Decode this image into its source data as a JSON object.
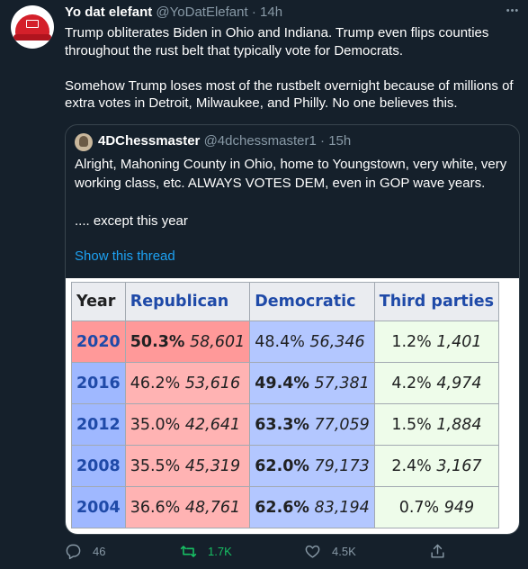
{
  "tweet": {
    "name": "Yo dat elefant",
    "handle": "@YoDatElefant",
    "separator": "·",
    "time": "14h",
    "paragraph1": "Trump obliterates Biden in Ohio and Indiana. Trump even flips counties throughout the rust belt that typically vote for Democrats.",
    "paragraph2": "Somehow Trump loses most of the rustbelt overnight because of millions of extra votes in Detroit, Milwaukee, and Philly.  No one believes this."
  },
  "quote": {
    "name": "4DChessmaster",
    "handle": "@4dchessmaster1",
    "separator": "·",
    "time": "15h",
    "paragraph1": "Alright, Mahoning County in Ohio, home to Youngstown, very white, very working class, etc. ALWAYS VOTES DEM, even in GOP wave years.",
    "paragraph2": ".... except this year",
    "show_thread": "Show this thread"
  },
  "election_table": {
    "headers": [
      "Year",
      "Republican",
      "Democratic",
      "Third parties"
    ],
    "rows": [
      {
        "year": "2020",
        "rep_pct": "50.3%",
        "rep_votes": "58,601",
        "dem_pct": "48.4%",
        "dem_votes": "56,346",
        "third_pct": "1.2%",
        "third_votes": "1,401"
      },
      {
        "year": "2016",
        "rep_pct": "46.2%",
        "rep_votes": "53,616",
        "dem_pct": "49.4%",
        "dem_votes": "57,381",
        "third_pct": "4.2%",
        "third_votes": "4,974"
      },
      {
        "year": "2012",
        "rep_pct": "35.0%",
        "rep_votes": "42,641",
        "dem_pct": "63.3%",
        "dem_votes": "77,059",
        "third_pct": "1.5%",
        "third_votes": "1,884"
      },
      {
        "year": "2008",
        "rep_pct": "35.5%",
        "rep_votes": "45,319",
        "dem_pct": "62.0%",
        "dem_votes": "79,173",
        "third_pct": "2.4%",
        "third_votes": "3,167"
      },
      {
        "year": "2004",
        "rep_pct": "36.6%",
        "rep_votes": "48,761",
        "dem_pct": "62.6%",
        "dem_votes": "83,194",
        "third_pct": "0.7%",
        "third_votes": "949"
      }
    ]
  },
  "actions": {
    "replies": "46",
    "retweets": "1.7K",
    "likes": "4.5K"
  },
  "colors": {
    "background": "#15202b",
    "link": "#1da1f2",
    "retweet": "#17bf63",
    "muted": "#8899a6",
    "republican": "#ffb3b3",
    "democratic": "#b3c7ff"
  }
}
